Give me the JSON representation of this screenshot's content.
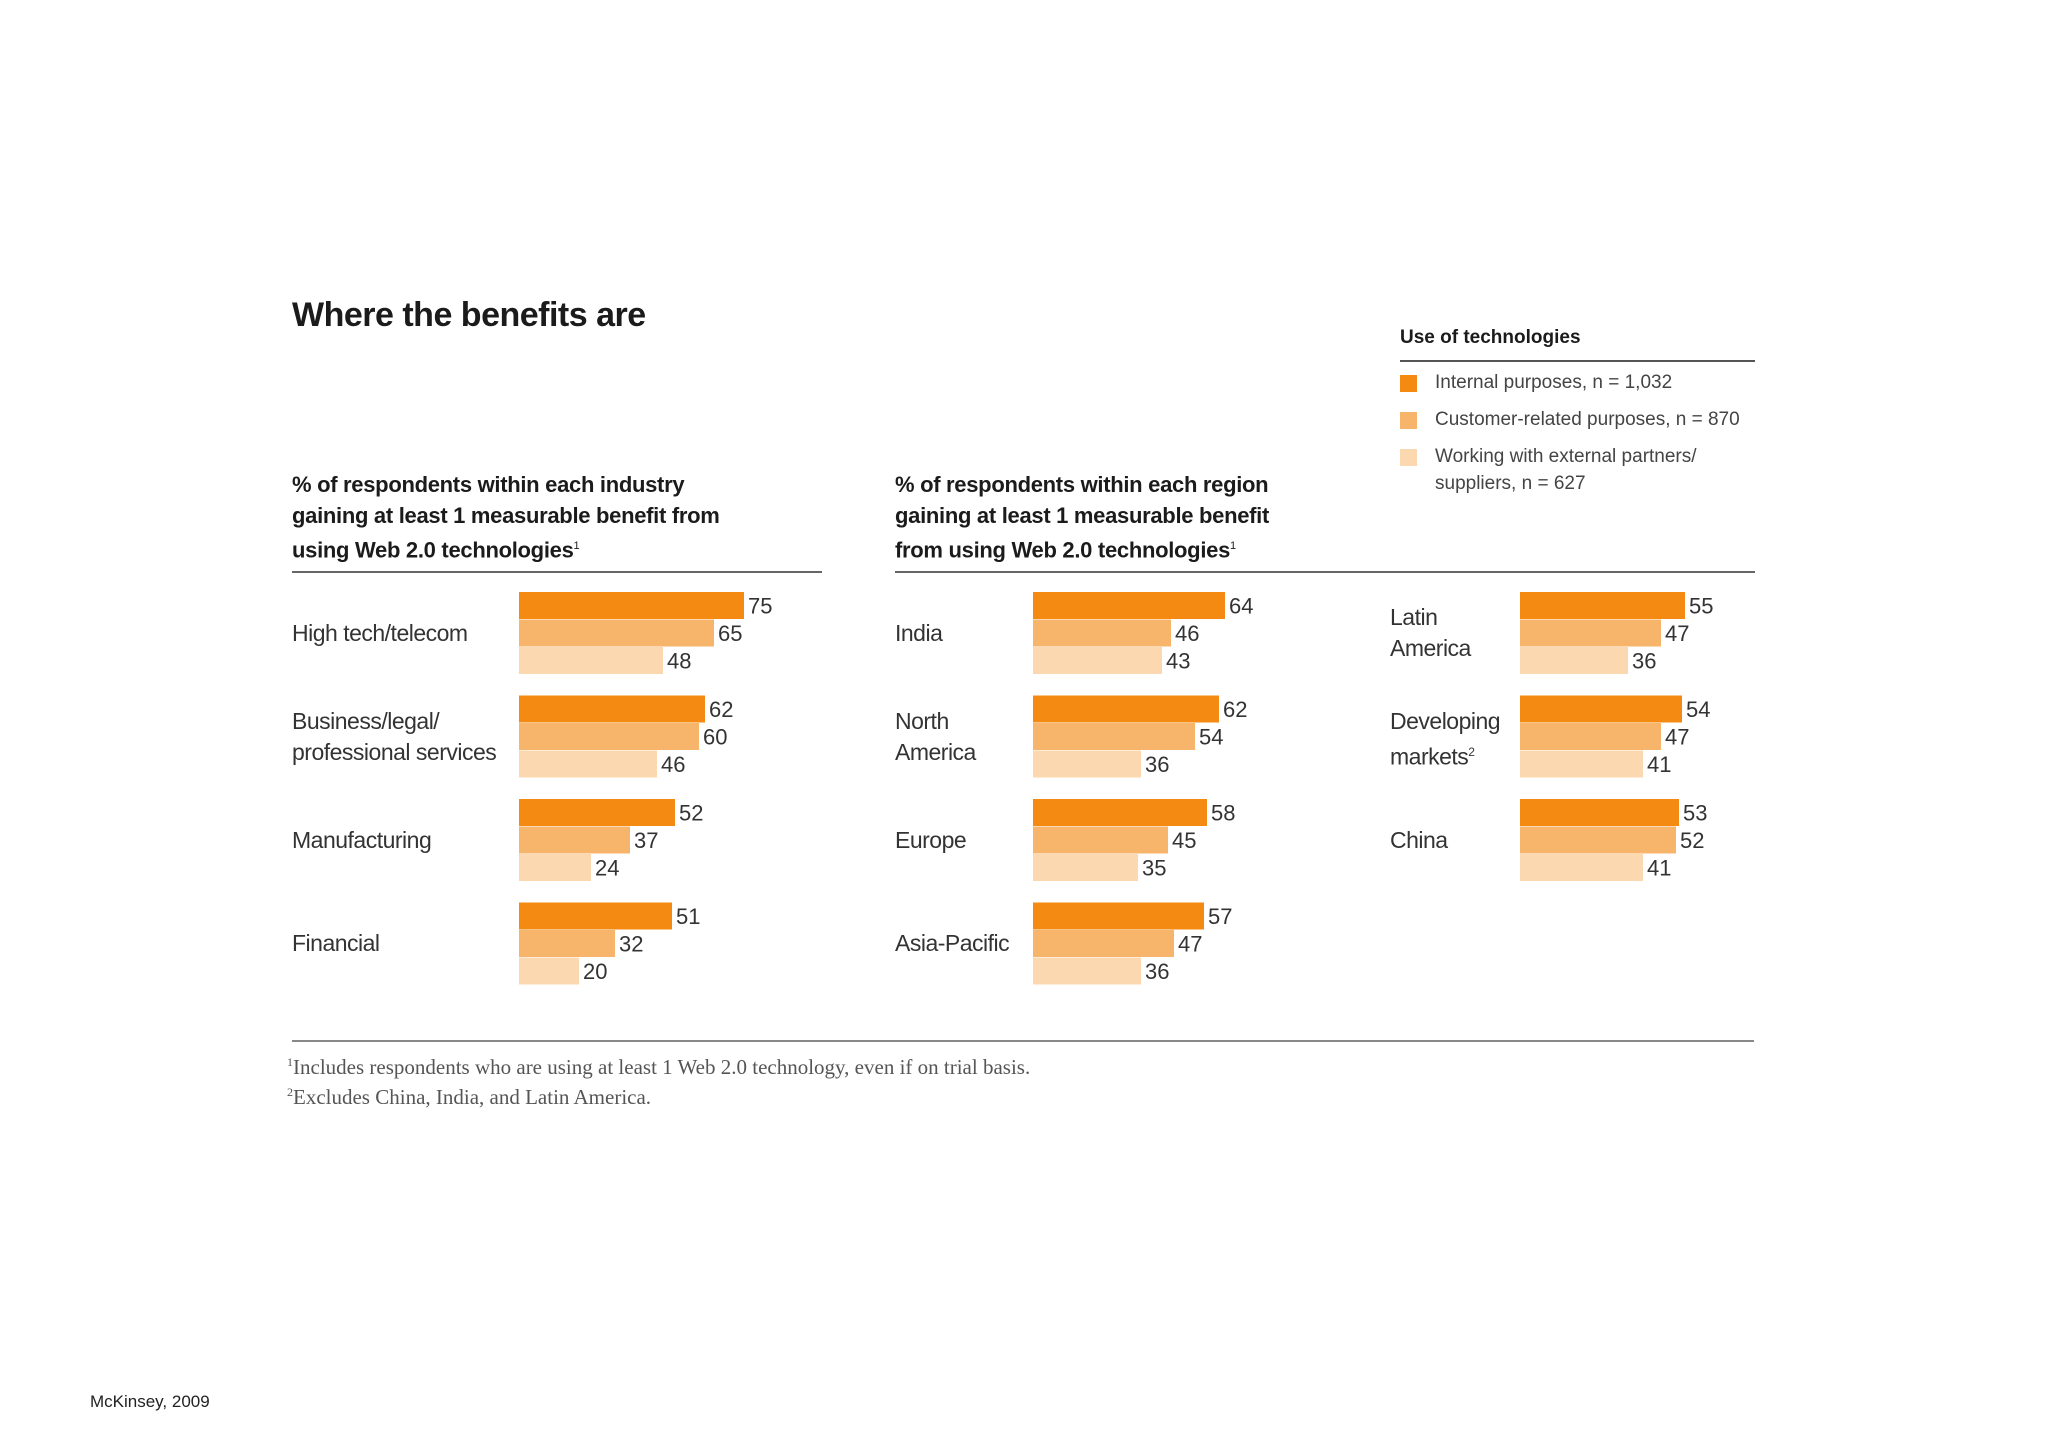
{
  "main_title": "Where the benefits are",
  "source": "McKinsey, 2009",
  "legend": {
    "title": "Use of technologies",
    "items": [
      {
        "label": "Internal purposes, n = 1,032",
        "color": "#f58a12"
      },
      {
        "label": "Customer-related purposes, n = 870",
        "color": "#f7b46b"
      },
      {
        "label_lines": [
          "Working with external partners/",
          "suppliers, n = 627"
        ],
        "color": "#fbd8b0"
      }
    ]
  },
  "panels": {
    "industry": {
      "subtitle_lines": [
        "% of respondents within each industry",
        "gaining at least 1 measurable benefit from",
        "using Web 2.0 technologies"
      ],
      "footnote_mark": "1"
    },
    "region": {
      "subtitle_lines": [
        "% of respondents within each region",
        "gaining at least 1 measurable benefit",
        "from using Web 2.0 technologies"
      ],
      "footnote_mark": "1"
    }
  },
  "footnotes": [
    {
      "mark": "1",
      "text": "Includes respondents who are using at least 1 Web 2.0 technology, even if on trial basis."
    },
    {
      "mark": "2",
      "text": "Excludes China, India, and Latin America."
    }
  ],
  "chart_data": [
    {
      "type": "bar",
      "orientation": "horizontal",
      "title": "% of respondents within each industry gaining at least 1 measurable benefit from using Web 2.0 technologies",
      "categories": [
        {
          "lines": [
            "High tech/telecom"
          ]
        },
        {
          "lines": [
            "Business/legal/",
            "professional services"
          ]
        },
        {
          "lines": [
            "Manufacturing"
          ]
        },
        {
          "lines": [
            "Financial"
          ]
        }
      ],
      "series": [
        {
          "name": "Internal purposes, n = 1,032",
          "values": [
            75,
            62,
            52,
            51
          ]
        },
        {
          "name": "Customer-related purposes, n = 870",
          "values": [
            65,
            60,
            37,
            32
          ]
        },
        {
          "name": "Working with external partners/suppliers, n = 627",
          "values": [
            48,
            46,
            24,
            20
          ]
        }
      ],
      "data_labels": true,
      "xlim": [
        0,
        100
      ],
      "legend_position": "top-right",
      "grid": false
    },
    {
      "type": "bar",
      "orientation": "horizontal",
      "title": "% of respondents within each region gaining at least 1 measurable benefit from using Web 2.0 technologies",
      "categories": [
        {
          "lines": [
            "India"
          ]
        },
        {
          "lines": [
            "North",
            "America"
          ]
        },
        {
          "lines": [
            "Europe"
          ]
        },
        {
          "lines": [
            "Asia-Pacific"
          ]
        }
      ],
      "series": [
        {
          "name": "Internal purposes, n = 1,032",
          "values": [
            64,
            62,
            58,
            57
          ]
        },
        {
          "name": "Customer-related purposes, n = 870",
          "values": [
            46,
            54,
            45,
            47
          ]
        },
        {
          "name": "Working with external partners/suppliers, n = 627",
          "values": [
            43,
            36,
            35,
            36
          ]
        }
      ],
      "data_labels": true,
      "xlim": [
        0,
        100
      ],
      "grid": false
    },
    {
      "type": "bar",
      "orientation": "horizontal",
      "title": "% of respondents within each region gaining at least 1 measurable benefit from using Web 2.0 technologies",
      "categories": [
        {
          "lines": [
            "Latin",
            "America"
          ]
        },
        {
          "lines": [
            "Developing",
            "markets"
          ],
          "sup": "2"
        },
        {
          "lines": [
            "China"
          ]
        }
      ],
      "series": [
        {
          "name": "Internal purposes, n = 1,032",
          "values": [
            55,
            54,
            53
          ]
        },
        {
          "name": "Customer-related purposes, n = 870",
          "values": [
            47,
            47,
            52
          ]
        },
        {
          "name": "Working with external partners/suppliers, n = 627",
          "values": [
            36,
            41,
            41
          ]
        }
      ],
      "data_labels": true,
      "xlim": [
        0,
        100
      ],
      "grid": false
    }
  ]
}
